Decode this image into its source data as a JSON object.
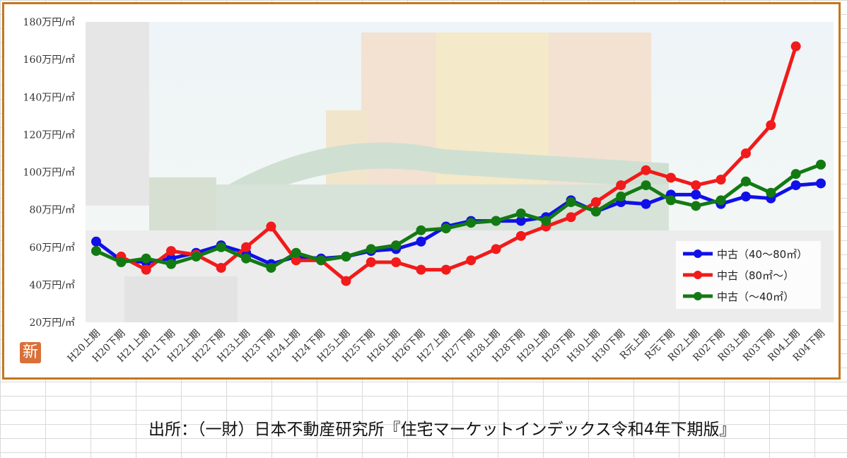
{
  "chart_data": {
    "type": "line",
    "categories": [
      "H20上期",
      "H20下期",
      "H21上期",
      "H21下期",
      "H22上期",
      "H22下期",
      "H23上期",
      "H23下期",
      "H24上期",
      "H24下期",
      "H25上期",
      "H25下期",
      "H26上期",
      "H26下期",
      "H27上期",
      "H27下期",
      "H28上期",
      "H28下期",
      "H29上期",
      "H29下期",
      "H30上期",
      "H30下期",
      "R元上期",
      "R元下期",
      "R02上期",
      "R02下期",
      "R03上期",
      "R03下期",
      "R04上期",
      "R04下期"
    ],
    "y_ticks": [
      "20万円/㎡",
      "40万円/㎡",
      "60万円/㎡",
      "80万円/㎡",
      "100万円/㎡",
      "120万円/㎡",
      "140万円/㎡",
      "160万円/㎡",
      "180万円/㎡"
    ],
    "ylim": [
      20,
      180
    ],
    "series": [
      {
        "name": "中古（40～80㎡）",
        "color": "#1010e8",
        "values": [
          63,
          53,
          52,
          54,
          57,
          61,
          57,
          51,
          55,
          54,
          55,
          58,
          59,
          63,
          71,
          74,
          74,
          74,
          76,
          85,
          79,
          84,
          83,
          88,
          88,
          83,
          87,
          86,
          93,
          94
        ]
      },
      {
        "name": "中古（80㎡～）",
        "color": "#f21a1a",
        "values": [
          null,
          55,
          48,
          58,
          56,
          49,
          60,
          71,
          53,
          53,
          42,
          52,
          52,
          48,
          48,
          53,
          59,
          66,
          71,
          76,
          84,
          93,
          101,
          97,
          93,
          96,
          110,
          125,
          167,
          null
        ]
      },
      {
        "name": "中古（～40㎡）",
        "color": "#137a13",
        "values": [
          58,
          52,
          54,
          51,
          55,
          60,
          54,
          49,
          57,
          53,
          55,
          59,
          61,
          69,
          70,
          73,
          74,
          78,
          74,
          84,
          79,
          87,
          93,
          85,
          82,
          85,
          95,
          89,
          99,
          104
        ]
      }
    ],
    "legend_position": "right"
  },
  "source": "出所：（一財）日本不動産研究所『住宅マーケットインデックス令和4年下期版』",
  "badge": "新"
}
